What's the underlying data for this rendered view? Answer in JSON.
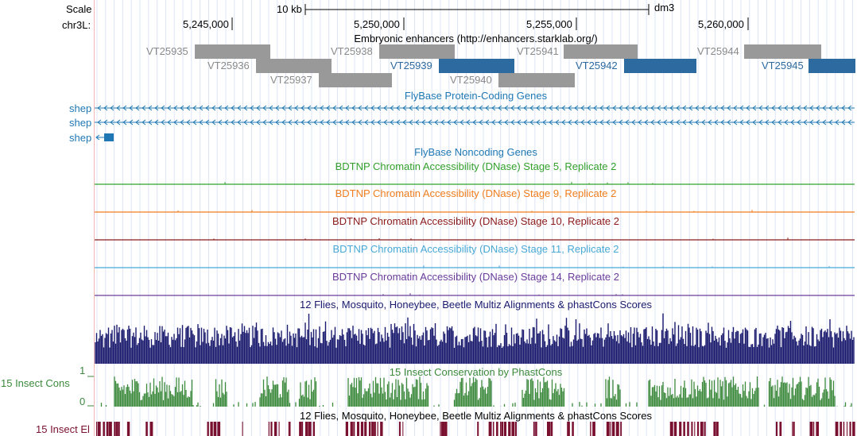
{
  "header": {
    "scale_label": "Scale",
    "scale_value": "10 kb",
    "assembly": "dm3",
    "chrom_label": "chr3L:",
    "ticks": [
      "5,245,000",
      "5,250,000",
      "5,255,000",
      "5,260,000"
    ]
  },
  "enhancers": {
    "title": "Embryonic enhancers (http://enhancers.starklab.org/)",
    "items": [
      {
        "id": "VT25935",
        "color": "gray"
      },
      {
        "id": "VT25936",
        "color": "gray"
      },
      {
        "id": "VT25937",
        "color": "gray"
      },
      {
        "id": "VT25938",
        "color": "gray"
      },
      {
        "id": "VT25939",
        "color": "blue"
      },
      {
        "id": "VT25940",
        "color": "gray"
      },
      {
        "id": "VT25941",
        "color": "gray"
      },
      {
        "id": "VT25942",
        "color": "blue"
      },
      {
        "id": "VT25944",
        "color": "gray"
      },
      {
        "id": "VT25945",
        "color": "blue"
      }
    ]
  },
  "genes": {
    "title": "FlyBase Protein-Coding Genes",
    "rows": [
      "shep",
      "shep",
      "shep"
    ]
  },
  "noncoding": {
    "title": "FlyBase Noncoding Genes"
  },
  "dnase": [
    {
      "title": "BDTNP Chromatin Accessibility (DNase) Stage 5, Replicate 2",
      "color": "#33a02c"
    },
    {
      "title": "BDTNP Chromatin Accessibility (DNase) Stage 9, Replicate 2",
      "color": "#f07d1e"
    },
    {
      "title": "BDTNP Chromatin Accessibility (DNase) Stage 10, Replicate 2",
      "color": "#8b1a1a"
    },
    {
      "title": "BDTNP Chromatin Accessibility (DNase) Stage 11, Replicate 2",
      "color": "#48a9d6"
    },
    {
      "title": "BDTNP Chromatin Accessibility (DNase) Stage 14, Replicate 2",
      "color": "#6a3d9a"
    }
  ],
  "multiz": {
    "title": "12 Flies, Mosquito, Honeybee, Beetle Multiz Alignments & phastCons Scores",
    "color": "#1a1a6e"
  },
  "phastcons": {
    "title": "15 Insect Conservation by PhastCons",
    "side_label": "15 Insect Cons",
    "ymax": "1",
    "ymin": "0",
    "color": "#3c8a3c"
  },
  "elements": {
    "title": "12 Flies, Mosquito, Honeybee, Beetle Multiz Alignments & phastCons Scores",
    "side_label": "15 Insect El",
    "color": "#7a1030"
  }
}
